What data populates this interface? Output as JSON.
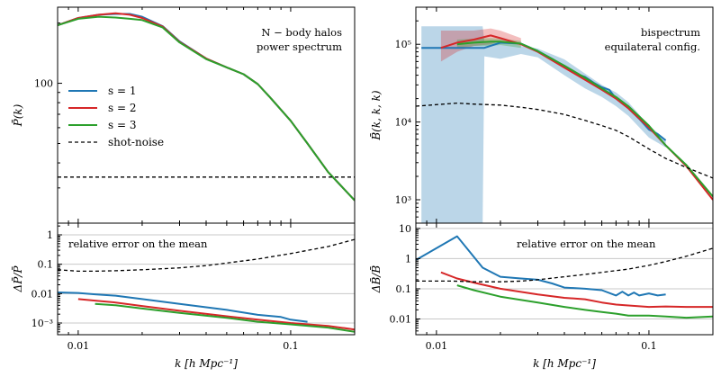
{
  "colors": {
    "s1": "#1f77b4",
    "s2": "#d62728",
    "s3": "#2ca02c",
    "shot": "#000000"
  },
  "chart_data": [
    {
      "id": "left_top",
      "type": "line",
      "panel": "top",
      "annotation": [
        "N − body halos",
        "power spectrum"
      ],
      "ylabel": "P̄(k)",
      "xscale": "log",
      "yscale": "log",
      "xlim": [
        0.008,
        0.2
      ],
      "ylim": [
        20,
        240
      ],
      "yticks": [
        {
          "v": 100,
          "label": "100"
        }
      ],
      "legend": {
        "position": "left-middle",
        "entries": [
          {
            "key": "s1",
            "label": "s = 1"
          },
          {
            "key": "s2",
            "label": "s = 2"
          },
          {
            "key": "s3",
            "label": "s = 3"
          },
          {
            "key": "shot",
            "label": "shot-noise",
            "dashed": true
          }
        ]
      },
      "series": [
        {
          "name": "s = 1",
          "color_key": "s1",
          "x": [
            0.008,
            0.01,
            0.0125,
            0.015,
            0.0175,
            0.02,
            0.025,
            0.03,
            0.04,
            0.05,
            0.06,
            0.07,
            0.08,
            0.1,
            0.12,
            0.15,
            0.2
          ],
          "y": [
            195,
            212,
            220,
            222,
            222,
            215,
            193,
            162,
            133,
            120,
            111,
            99,
            85,
            65,
            50,
            36,
            26
          ]
        },
        {
          "name": "s = 2",
          "color_key": "s2",
          "x": [
            0.008,
            0.01,
            0.0125,
            0.015,
            0.0175,
            0.02,
            0.025,
            0.03,
            0.04,
            0.05,
            0.06,
            0.07,
            0.08,
            0.1,
            0.12,
            0.15,
            0.2
          ],
          "y": [
            195,
            212,
            220,
            224,
            220,
            212,
            192,
            161,
            133,
            120,
            111,
            99,
            85,
            65,
            50,
            36,
            26
          ]
        },
        {
          "name": "s = 3",
          "color_key": "s3",
          "x": [
            0.008,
            0.01,
            0.0125,
            0.015,
            0.0175,
            0.02,
            0.025,
            0.03,
            0.04,
            0.05,
            0.06,
            0.07,
            0.08,
            0.1,
            0.12,
            0.15,
            0.2
          ],
          "y": [
            195,
            210,
            215,
            213,
            210,
            207,
            190,
            160,
            132,
            120,
            111,
            99,
            85,
            65,
            50,
            36,
            26
          ]
        },
        {
          "name": "shot-noise",
          "color_key": "shot",
          "dashed": true,
          "x": [
            0.008,
            0.2
          ],
          "y": [
            34,
            34
          ]
        }
      ]
    },
    {
      "id": "left_bottom",
      "type": "line",
      "panel": "bottom",
      "annotation": [
        "relative error on the mean"
      ],
      "ylabel": "ΔP̄/P̄",
      "xlabel": "k [h Mpc⁻¹]",
      "xscale": "log",
      "yscale": "log",
      "xlim": [
        0.008,
        0.2
      ],
      "ylim": [
        0.0004,
        2.5
      ],
      "yticks": [
        {
          "v": 1,
          "label": "1"
        },
        {
          "v": 0.1,
          "label": "0.1"
        },
        {
          "v": 0.01,
          "label": "0.01"
        },
        {
          "v": 0.001,
          "label": "10⁻³"
        }
      ],
      "xticks": [
        {
          "v": 0.01,
          "label": "0.01"
        },
        {
          "v": 0.1,
          "label": "0.1"
        }
      ],
      "series": [
        {
          "name": "s = 1",
          "color_key": "s1",
          "x": [
            0.008,
            0.01,
            0.012,
            0.015,
            0.02,
            0.03,
            0.05,
            0.07,
            0.09,
            0.1,
            0.12
          ],
          "y": [
            0.011,
            0.0105,
            0.0095,
            0.0085,
            0.0065,
            0.0045,
            0.0028,
            0.0019,
            0.0016,
            0.0013,
            0.0011
          ]
        },
        {
          "name": "s = 2",
          "color_key": "s2",
          "x": [
            0.01,
            0.012,
            0.015,
            0.02,
            0.03,
            0.05,
            0.07,
            0.1,
            0.15,
            0.2
          ],
          "y": [
            0.0065,
            0.0058,
            0.005,
            0.0038,
            0.0026,
            0.0017,
            0.0013,
            0.001,
            0.0008,
            0.0006
          ]
        },
        {
          "name": "s = 3",
          "color_key": "s3",
          "x": [
            0.012,
            0.015,
            0.02,
            0.03,
            0.05,
            0.07,
            0.1,
            0.15,
            0.2
          ],
          "y": [
            0.0045,
            0.004,
            0.0031,
            0.0022,
            0.0015,
            0.0011,
            0.0009,
            0.0007,
            0.0005
          ]
        },
        {
          "name": "shot-noise",
          "color_key": "shot",
          "dashed": true,
          "x": [
            0.008,
            0.01,
            0.012,
            0.015,
            0.02,
            0.03,
            0.04,
            0.05,
            0.07,
            0.1,
            0.15,
            0.2
          ],
          "y": [
            0.065,
            0.058,
            0.058,
            0.06,
            0.065,
            0.075,
            0.09,
            0.11,
            0.15,
            0.23,
            0.4,
            0.7
          ]
        }
      ]
    },
    {
      "id": "right_top",
      "type": "line",
      "panel": "top",
      "annotation": [
        "bispectrum",
        "equilateral config."
      ],
      "ylabel": "B̄(k, k, k)",
      "xscale": "log",
      "yscale": "log",
      "xlim": [
        0.008,
        0.2
      ],
      "ylim": [
        500,
        300000
      ],
      "yticks": [
        {
          "v": 1000,
          "label": "10³"
        },
        {
          "v": 10000,
          "label": "10⁴"
        },
        {
          "v": 100000,
          "label": "10⁵"
        }
      ],
      "bands": [
        {
          "name": "s = 1 band",
          "color_key": "s1",
          "x": [
            0.0085,
            0.0165,
            0.0168,
            0.02,
            0.025,
            0.03,
            0.04,
            0.05,
            0.06,
            0.07,
            0.08,
            0.1,
            0.12
          ],
          "upper": [
            170000,
            170000,
            110000,
            110000,
            95000,
            88000,
            64000,
            42000,
            30000,
            24000,
            18000,
            9000,
            6000
          ],
          "lower": [
            500,
            500,
            70000,
            65000,
            75000,
            68000,
            40000,
            27000,
            21000,
            16000,
            12000,
            6300,
            4700
          ]
        },
        {
          "name": "s = 2 band",
          "color_key": "s2",
          "x": [
            0.0105,
            0.0125,
            0.015,
            0.018,
            0.02,
            0.025
          ],
          "upper": [
            150000,
            150000,
            150000,
            160000,
            150000,
            120000
          ],
          "lower": [
            60000,
            80000,
            95000,
            100000,
            110000,
            95000
          ]
        },
        {
          "name": "s = 3 band",
          "color_key": "s3",
          "x": [
            0.0125,
            0.015,
            0.018,
            0.02,
            0.025
          ],
          "upper": [
            115000,
            118000,
            120000,
            118000,
            110000
          ],
          "lower": [
            90000,
            95000,
            95000,
            98000,
            90000
          ]
        }
      ],
      "series": [
        {
          "name": "s = 1",
          "color_key": "s1",
          "x": [
            0.0085,
            0.0165,
            0.0168,
            0.02,
            0.025,
            0.03,
            0.035,
            0.04,
            0.045,
            0.05,
            0.055,
            0.06,
            0.065,
            0.07,
            0.08,
            0.09,
            0.1,
            0.11,
            0.12
          ],
          "y": [
            90000,
            90000,
            90000,
            105000,
            102000,
            82000,
            65000,
            52000,
            42000,
            38000,
            32000,
            28000,
            26000,
            20000,
            15000,
            11000,
            8000,
            7000,
            5800
          ]
        },
        {
          "name": "s = 2",
          "color_key": "s2",
          "x": [
            0.0105,
            0.0125,
            0.015,
            0.018,
            0.02,
            0.025,
            0.03,
            0.04,
            0.05,
            0.06,
            0.07,
            0.08,
            0.1,
            0.12,
            0.15,
            0.2
          ],
          "y": [
            90000,
            105000,
            115000,
            130000,
            120000,
            100000,
            80000,
            50000,
            35000,
            26000,
            20000,
            15000,
            8500,
            5000,
            2700,
            1000
          ]
        },
        {
          "name": "s = 3",
          "color_key": "s3",
          "x": [
            0.0125,
            0.015,
            0.018,
            0.02,
            0.025,
            0.03,
            0.04,
            0.05,
            0.06,
            0.07,
            0.08,
            0.1,
            0.12,
            0.15,
            0.2
          ],
          "y": [
            100000,
            105000,
            108000,
            108000,
            102000,
            82000,
            53000,
            37000,
            27000,
            21000,
            16000,
            9000,
            5000,
            2800,
            1100
          ]
        },
        {
          "name": "shot-noise",
          "color_key": "shot",
          "dashed": true,
          "x": [
            0.008,
            0.0125,
            0.015,
            0.02,
            0.025,
            0.03,
            0.04,
            0.05,
            0.06,
            0.07,
            0.08,
            0.1,
            0.12,
            0.15,
            0.2
          ],
          "y": [
            16000,
            17500,
            17000,
            16500,
            15500,
            14500,
            12500,
            10500,
            9000,
            7800,
            6500,
            4500,
            3400,
            2600,
            1900
          ]
        }
      ]
    },
    {
      "id": "right_bottom",
      "type": "line",
      "panel": "bottom",
      "annotation": [
        "relative error on the mean"
      ],
      "ylabel": "ΔB̄/B̄",
      "xlabel": "k [h Mpc⁻¹]",
      "xscale": "log",
      "yscale": "log",
      "xlim": [
        0.008,
        0.2
      ],
      "ylim": [
        0.003,
        15
      ],
      "yticks": [
        {
          "v": 10,
          "label": "10"
        },
        {
          "v": 1,
          "label": "1"
        },
        {
          "v": 0.1,
          "label": "0.1"
        },
        {
          "v": 0.01,
          "label": "0.01"
        }
      ],
      "xticks": [
        {
          "v": 0.01,
          "label": "0.01"
        },
        {
          "v": 0.1,
          "label": "0.1"
        }
      ],
      "series": [
        {
          "name": "s = 1",
          "color_key": "s1",
          "x": [
            0.008,
            0.0125,
            0.0165,
            0.02,
            0.025,
            0.03,
            0.035,
            0.04,
            0.05,
            0.06,
            0.07,
            0.075,
            0.08,
            0.085,
            0.09,
            0.1,
            0.11,
            0.12
          ],
          "y": [
            0.9,
            5.5,
            0.5,
            0.25,
            0.22,
            0.2,
            0.15,
            0.11,
            0.1,
            0.09,
            0.06,
            0.08,
            0.06,
            0.075,
            0.06,
            0.07,
            0.06,
            0.065
          ]
        },
        {
          "name": "s = 2",
          "color_key": "s2",
          "x": [
            0.0105,
            0.0125,
            0.015,
            0.02,
            0.03,
            0.04,
            0.05,
            0.06,
            0.07,
            0.08,
            0.1,
            0.12,
            0.15,
            0.2
          ],
          "y": [
            0.35,
            0.22,
            0.16,
            0.1,
            0.065,
            0.05,
            0.045,
            0.035,
            0.03,
            0.028,
            0.025,
            0.026,
            0.025,
            0.025
          ]
        },
        {
          "name": "s = 3",
          "color_key": "s3",
          "x": [
            0.0125,
            0.015,
            0.02,
            0.03,
            0.04,
            0.05,
            0.06,
            0.07,
            0.08,
            0.1,
            0.12,
            0.15,
            0.2
          ],
          "y": [
            0.13,
            0.09,
            0.055,
            0.035,
            0.025,
            0.02,
            0.017,
            0.015,
            0.013,
            0.013,
            0.012,
            0.011,
            0.012
          ]
        },
        {
          "name": "shot-noise",
          "color_key": "shot",
          "dashed": true,
          "x": [
            0.008,
            0.012,
            0.015,
            0.02,
            0.025,
            0.03,
            0.04,
            0.05,
            0.06,
            0.08,
            0.1,
            0.12,
            0.15,
            0.2
          ],
          "y": [
            0.18,
            0.18,
            0.17,
            0.17,
            0.18,
            0.2,
            0.25,
            0.3,
            0.35,
            0.45,
            0.6,
            0.8,
            1.2,
            2.2
          ]
        }
      ]
    }
  ]
}
